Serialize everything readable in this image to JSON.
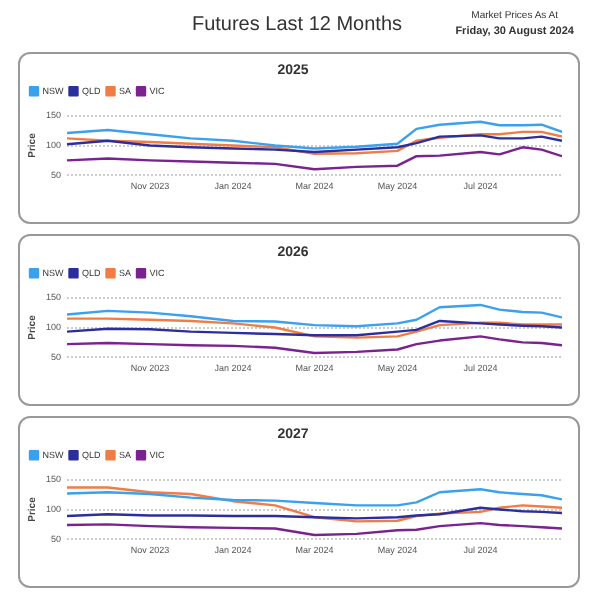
{
  "chart_data": [
    {
      "type": "line",
      "title": "2025",
      "ylabel": "Price",
      "annotations": [
        "Futures Last 12 Months",
        "Market Prices As At",
        "Friday, 30 August 2024"
      ],
      "x": [
        "2023-09-01",
        "2023-10-01",
        "2023-11-01",
        "2023-12-01",
        "2024-01-01",
        "2024-02-01",
        "2024-03-01",
        "2024-04-01",
        "2024-05-01",
        "2024-05-15",
        "2024-06-01",
        "2024-07-01",
        "2024-07-15",
        "2024-08-01",
        "2024-08-15",
        "2024-08-30"
      ],
      "series": [
        {
          "name": "NSW",
          "color": "#3aa0f0",
          "values": [
            121,
            126,
            119,
            112,
            108,
            100,
            95,
            98,
            103,
            128,
            135,
            140,
            134,
            134,
            135,
            123
          ]
        },
        {
          "name": "QLD",
          "color": "#2b2f9e",
          "values": [
            102,
            108,
            100,
            97,
            95,
            93,
            89,
            93,
            97,
            104,
            115,
            117,
            112,
            112,
            115,
            108
          ]
        },
        {
          "name": "SA",
          "color": "#f07d45",
          "values": [
            112,
            108,
            106,
            103,
            100,
            97,
            86,
            87,
            91,
            108,
            113,
            119,
            119,
            123,
            123,
            115
          ]
        },
        {
          "name": "VIC",
          "color": "#7b2190",
          "values": [
            75,
            78,
            75,
            73,
            71,
            69,
            60,
            64,
            66,
            82,
            83,
            89,
            85,
            97,
            93,
            82
          ]
        }
      ],
      "xlim": [
        "2023-09-01",
        "2024-08-30"
      ],
      "xticks": [
        {
          "value": "2023-11-01",
          "label": "Nov 2023"
        },
        {
          "value": "2024-01-01",
          "label": "Jan 2024"
        },
        {
          "value": "2024-03-01",
          "label": "Mar 2024"
        },
        {
          "value": "2024-05-01",
          "label": "May 2024"
        },
        {
          "value": "2024-07-01",
          "label": "Jul 2024"
        }
      ],
      "ylim": [
        50,
        150
      ],
      "yticks": [
        50,
        100,
        150
      ],
      "grid": "y",
      "legend": "top left",
      "marker": "none",
      "line_style": "solid"
    },
    {
      "type": "line",
      "title": "2026",
      "ylabel": "Price",
      "x": [
        "2023-09-01",
        "2023-10-01",
        "2023-11-01",
        "2023-12-01",
        "2024-01-01",
        "2024-02-01",
        "2024-03-01",
        "2024-04-01",
        "2024-05-01",
        "2024-05-15",
        "2024-06-01",
        "2024-07-01",
        "2024-07-15",
        "2024-08-01",
        "2024-08-15",
        "2024-08-30"
      ],
      "series": [
        {
          "name": "NSW",
          "color": "#3aa0f0",
          "values": [
            122,
            128,
            125,
            119,
            111,
            110,
            104,
            102,
            107,
            113,
            134,
            138,
            130,
            126,
            125,
            117
          ]
        },
        {
          "name": "QLD",
          "color": "#2b2f9e",
          "values": [
            93,
            98,
            97,
            93,
            91,
            89,
            87,
            87,
            93,
            96,
            111,
            107,
            105,
            103,
            102,
            100
          ]
        },
        {
          "name": "SA",
          "color": "#f07d45",
          "values": [
            115,
            115,
            113,
            111,
            107,
            100,
            85,
            83,
            85,
            93,
            104,
            108,
            108,
            105,
            105,
            105
          ]
        },
        {
          "name": "VIC",
          "color": "#7b2190",
          "values": [
            72,
            74,
            72,
            70,
            69,
            66,
            57,
            59,
            63,
            72,
            78,
            85,
            80,
            75,
            74,
            70
          ]
        }
      ],
      "xlim": [
        "2023-09-01",
        "2024-08-30"
      ],
      "xticks": [
        {
          "value": "2023-11-01",
          "label": "Nov 2023"
        },
        {
          "value": "2024-01-01",
          "label": "Jan 2024"
        },
        {
          "value": "2024-03-01",
          "label": "Mar 2024"
        },
        {
          "value": "2024-05-01",
          "label": "May 2024"
        },
        {
          "value": "2024-07-01",
          "label": "Jul 2024"
        }
      ],
      "ylim": [
        50,
        150
      ],
      "yticks": [
        50,
        100,
        150
      ],
      "grid": "y",
      "legend": "top left",
      "marker": "none",
      "line_style": "solid"
    },
    {
      "type": "line",
      "title": "2027",
      "ylabel": "Price",
      "x": [
        "2023-09-01",
        "2023-10-01",
        "2023-11-01",
        "2023-12-01",
        "2024-01-01",
        "2024-02-01",
        "2024-03-01",
        "2024-04-01",
        "2024-05-01",
        "2024-05-15",
        "2024-06-01",
        "2024-07-01",
        "2024-07-15",
        "2024-08-01",
        "2024-08-15",
        "2024-08-30"
      ],
      "series": [
        {
          "name": "NSW",
          "color": "#3aa0f0",
          "values": [
            127,
            129,
            126,
            120,
            116,
            115,
            111,
            107,
            107,
            112,
            129,
            134,
            129,
            126,
            124,
            117
          ]
        },
        {
          "name": "QLD",
          "color": "#2b2f9e",
          "values": [
            89,
            92,
            90,
            90,
            89,
            89,
            87,
            85,
            87,
            90,
            92,
            103,
            100,
            97,
            96,
            94
          ]
        },
        {
          "name": "SA",
          "color": "#f07d45",
          "values": [
            137,
            137,
            129,
            126,
            114,
            107,
            87,
            80,
            81,
            89,
            93,
            96,
            103,
            107,
            105,
            103
          ]
        },
        {
          "name": "VIC",
          "color": "#7b2190",
          "values": [
            74,
            75,
            72,
            70,
            69,
            68,
            57,
            59,
            65,
            66,
            72,
            77,
            74,
            72,
            70,
            68
          ]
        }
      ],
      "xlim": [
        "2023-09-01",
        "2024-08-30"
      ],
      "xticks": [
        {
          "value": "2023-11-01",
          "label": "Nov 2023"
        },
        {
          "value": "2024-01-01",
          "label": "Jan 2024"
        },
        {
          "value": "2024-03-01",
          "label": "Mar 2024"
        },
        {
          "value": "2024-05-01",
          "label": "May 2024"
        },
        {
          "value": "2024-07-01",
          "label": "Jul 2024"
        }
      ],
      "ylim": [
        50,
        150
      ],
      "yticks": [
        50,
        100,
        150
      ],
      "grid": "y",
      "legend": "top left",
      "marker": "none",
      "line_style": "solid"
    }
  ]
}
